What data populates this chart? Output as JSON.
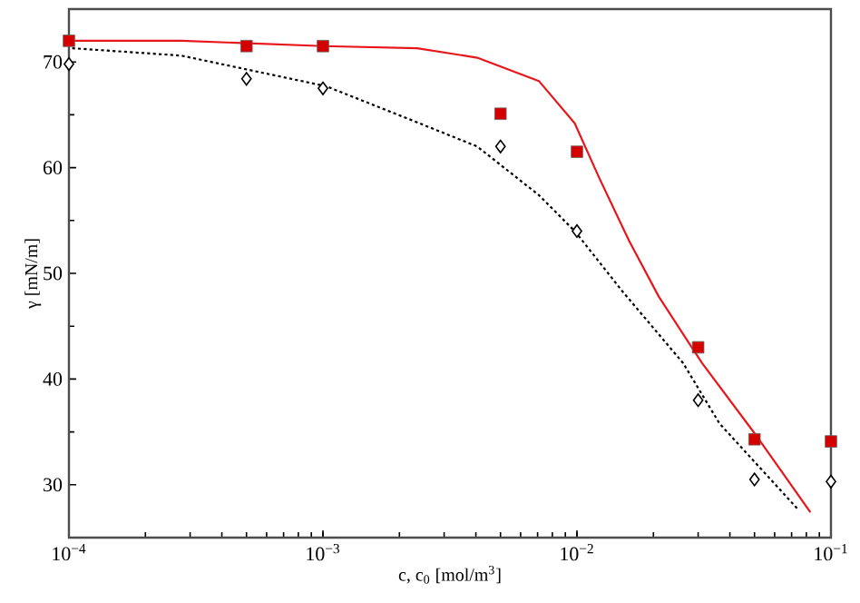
{
  "chart_data": {
    "type": "scatter",
    "xlabel": "c, c$_{0}$ [mol/m$^{3}$]",
    "ylabel": "γ [mN/m]",
    "log": "x",
    "xlim": [
      0.0001,
      0.1
    ],
    "ylim": [
      25,
      75
    ],
    "xticks": [
      {
        "value": 0.0001,
        "label": "10$^{−4}$"
      },
      {
        "value": 0.001,
        "label": "10$^{−3}$"
      },
      {
        "value": 0.01,
        "label": "10$^{−2}$"
      },
      {
        "value": 0.1,
        "label": "10$^{−1}$"
      }
    ],
    "yticks": [
      30,
      40,
      50,
      60,
      70
    ],
    "series": [
      {
        "marker": "square",
        "color": "#d40000",
        "x": [
          0.0001,
          0.0005,
          0.001,
          0.005,
          0.01,
          0.03,
          0.05,
          0.1
        ],
        "values": [
          72.0,
          71.5,
          71.5,
          65.1,
          61.5,
          43.0,
          34.3,
          34.1
        ]
      },
      {
        "marker": "diamond",
        "color": "#000000",
        "x": [
          0.0001,
          0.0005,
          0.001,
          0.005,
          0.01,
          0.03,
          0.05,
          0.1
        ],
        "values": [
          69.8,
          68.4,
          67.5,
          62.0,
          54.0,
          38.0,
          30.5,
          30.3
        ]
      },
      {
        "type": "line",
        "line_style": "solid",
        "color": "#e8161b",
        "x": [
          0.0001,
          0.000277,
          0.001,
          0.00235,
          0.00405,
          0.00708,
          0.0098,
          0.0122,
          0.0161,
          0.021,
          0.0311,
          0.051,
          0.083
        ],
        "values": [
          72.0,
          72.0,
          71.5,
          71.3,
          70.4,
          68.2,
          64.2,
          59.1,
          53.0,
          47.8,
          41.5,
          34.6,
          27.4
        ]
      },
      {
        "type": "line",
        "line_style": "dotted",
        "color": "#000000",
        "x": [
          0.000103,
          0.000277,
          0.000477,
          0.00103,
          0.00234,
          0.00405,
          0.00708,
          0.0098,
          0.0151,
          0.0262,
          0.0364,
          0.074
        ],
        "values": [
          71.3,
          70.6,
          69.4,
          67.7,
          64.3,
          62.0,
          57.4,
          54.0,
          48.3,
          41.5,
          35.8,
          27.7
        ]
      }
    ]
  }
}
